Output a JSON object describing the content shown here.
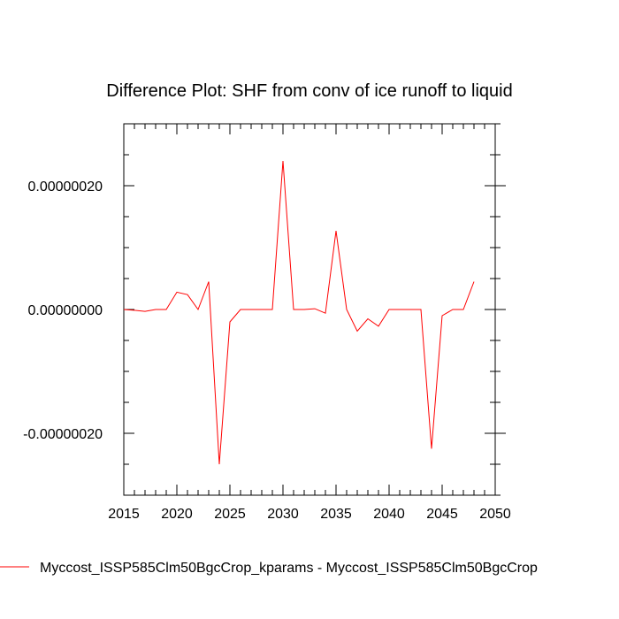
{
  "chart_data": {
    "type": "line",
    "title": "Difference Plot: SHF from conv of ice runoff to liquid",
    "xlabel": "",
    "ylabel": "",
    "xlim": [
      2015,
      2050
    ],
    "ylim": [
      -3e-07,
      3e-07
    ],
    "x_ticks": [
      2015,
      2020,
      2025,
      2030,
      2035,
      2040,
      2045,
      2050
    ],
    "x_tick_labels": [
      "2015",
      "2020",
      "2025",
      "2030",
      "2035",
      "2040",
      "2045",
      "2050"
    ],
    "y_ticks": [
      -2e-07,
      0.0,
      2e-07
    ],
    "y_tick_labels": [
      "-0.00000020",
      "0.00000000",
      "0.00000020"
    ],
    "grid": false,
    "legend_position": "bottom",
    "series": [
      {
        "name": "Myccost_ISSP585Clm50BgcCrop_kparams - Myccost_ISSP585Clm50BgcCrop",
        "color": "#ff0000",
        "x": [
          2015,
          2016,
          2017,
          2018,
          2019,
          2020,
          2021,
          2022,
          2023,
          2024,
          2025,
          2026,
          2027,
          2028,
          2029,
          2030,
          2031,
          2032,
          2033,
          2034,
          2035,
          2036,
          2037,
          2038,
          2039,
          2040,
          2041,
          2042,
          2043,
          2044,
          2045,
          2046,
          2047,
          2048
        ],
        "y": [
          0.0,
          -1.3e-09,
          -3e-09,
          0.0,
          0.0,
          2.8e-08,
          2.4e-08,
          0.0,
          4.5e-08,
          -2.5e-07,
          -2e-08,
          0.0,
          0.0,
          0.0,
          0.0,
          2.4e-07,
          0.0,
          0.0,
          1.3e-09,
          -6e-09,
          1.27e-07,
          0.0,
          -3.5e-08,
          -1.5e-08,
          -2.7e-08,
          0.0,
          0.0,
          0.0,
          0.0,
          -2.25e-07,
          -1e-08,
          0.0,
          0.0,
          4.5e-08
        ]
      }
    ]
  }
}
